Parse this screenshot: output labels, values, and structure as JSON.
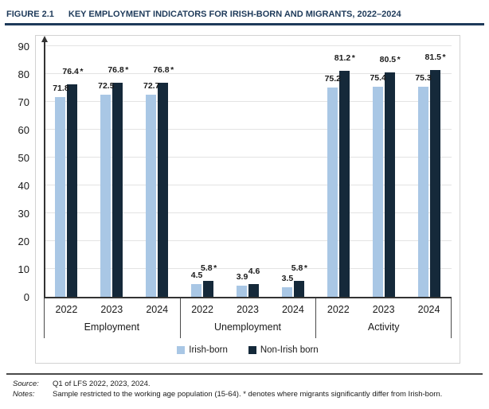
{
  "figure": {
    "label": "FIGURE 2.1",
    "title": "KEY EMPLOYMENT INDICATORS FOR IRISH-BORN AND MIGRANTS, 2022–2024"
  },
  "chart_data": {
    "type": "bar",
    "title": "Key employment indicators for Irish-born and migrants, 2022–2024",
    "ylim": [
      0,
      90
    ],
    "ytick_step": 10,
    "grid": true,
    "legend_position": "bottom",
    "categories": [
      "Employment",
      "Unemployment",
      "Activity"
    ],
    "years": [
      "2022",
      "2023",
      "2024"
    ],
    "series": [
      {
        "name": "Irish-born",
        "color": "#a9c7e5",
        "values": {
          "Employment": [
            71.8,
            72.5,
            72.7
          ],
          "Unemployment": [
            4.5,
            3.9,
            3.5
          ],
          "Activity": [
            75.2,
            75.4,
            75.3
          ]
        },
        "significant": {
          "Employment": [
            false,
            false,
            false
          ],
          "Unemployment": [
            false,
            false,
            false
          ],
          "Activity": [
            false,
            false,
            false
          ]
        }
      },
      {
        "name": "Non-Irish born",
        "color": "#15293a",
        "values": {
          "Employment": [
            76.4,
            76.8,
            76.8
          ],
          "Unemployment": [
            5.8,
            4.6,
            5.8
          ],
          "Activity": [
            81.2,
            80.5,
            81.5
          ]
        },
        "significant": {
          "Employment": [
            true,
            true,
            true
          ],
          "Unemployment": [
            true,
            false,
            true
          ],
          "Activity": [
            true,
            true,
            true
          ]
        }
      }
    ]
  },
  "footer": {
    "source_label": "Source:",
    "source_text": "Q1 of LFS 2022, 2023, 2024.",
    "notes_label": "Notes:",
    "notes_text": "Sample restricted to the working age population (15-64). * denotes where migrants significantly differ from Irish-born."
  }
}
